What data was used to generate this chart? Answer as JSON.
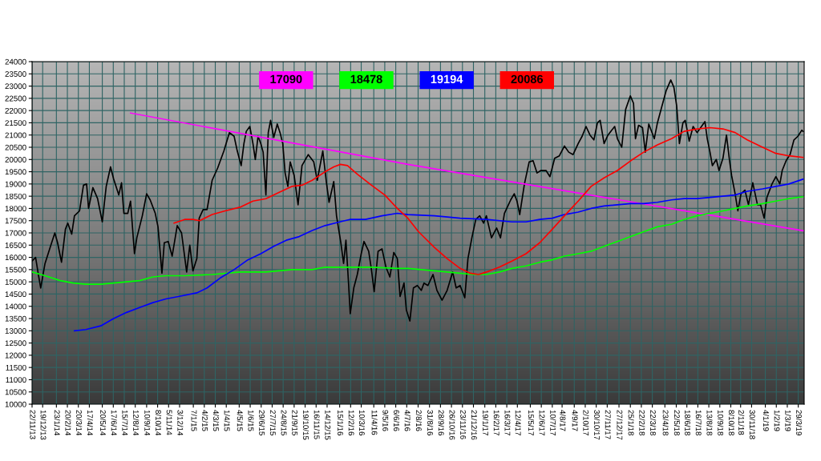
{
  "chart_data": {
    "type": "line",
    "series": [
      {
        "color": "#000000",
        "x": [
          "2013-11-22",
          "2013-12-01",
          "2013-12-08",
          "2013-12-14",
          "2013-12-25",
          "2014-01-07",
          "2014-01-19",
          "2014-01-26",
          "2014-02-05",
          "2014-02-15",
          "2014-02-21",
          "2014-03-03",
          "2014-03-10",
          "2014-03-23",
          "2014-04-02",
          "2014-04-10",
          "2014-04-15",
          "2014-04-26",
          "2014-05-08",
          "2014-05-20",
          "2014-05-30",
          "2014-06-10",
          "2014-06-18",
          "2014-07-01",
          "2014-07-08",
          "2014-07-14",
          "2014-07-24",
          "2014-07-31",
          "2014-08-10",
          "2014-08-16",
          "2014-08-30",
          "2014-09-10",
          "2014-09-19",
          "2014-10-02",
          "2014-10-09",
          "2014-10-19",
          "2014-10-25",
          "2014-11-04",
          "2014-11-14",
          "2014-11-27",
          "2014-12-08",
          "2014-12-21",
          "2014-12-29",
          "2015-01-06",
          "2015-01-16",
          "2015-01-22",
          "2015-02-01",
          "2015-02-11",
          "2015-02-24",
          "2015-03-10",
          "2015-03-26",
          "2015-04-09",
          "2015-04-21",
          "2015-04-29",
          "2015-05-09",
          "2015-05-16",
          "2015-05-22",
          "2015-05-31",
          "2015-06-08",
          "2015-06-14",
          "2015-06-21",
          "2015-06-28",
          "2015-07-04",
          "2015-07-11",
          "2015-07-17",
          "2015-07-23",
          "2015-07-31",
          "2015-08-09",
          "2015-08-16",
          "2015-08-23",
          "2015-08-29",
          "2015-09-05",
          "2015-09-11",
          "2015-09-21",
          "2015-10-01",
          "2015-10-11",
          "2015-10-27",
          "2015-11-10",
          "2015-11-19",
          "2015-12-03",
          "2015-12-12",
          "2015-12-19",
          "2015-12-31",
          "2016-01-07",
          "2016-01-18",
          "2016-01-25",
          "2016-01-31",
          "2016-02-07",
          "2016-02-11",
          "2016-02-20",
          "2016-02-29",
          "2016-03-10",
          "2016-03-17",
          "2016-03-29",
          "2016-04-05",
          "2016-04-12",
          "2016-04-22",
          "2016-05-02",
          "2016-05-12",
          "2016-05-22",
          "2016-06-01",
          "2016-06-10",
          "2016-06-17",
          "2016-06-27",
          "2016-07-03",
          "2016-07-12",
          "2016-07-21",
          "2016-07-31",
          "2016-08-10",
          "2016-08-17",
          "2016-08-27",
          "2016-09-09",
          "2016-09-19",
          "2016-10-02",
          "2016-10-15",
          "2016-10-29",
          "2016-11-07",
          "2016-11-17",
          "2016-11-29",
          "2016-12-07",
          "2016-12-17",
          "2016-12-27",
          "2017-01-06",
          "2017-01-16",
          "2017-01-23",
          "2017-02-05",
          "2017-02-18",
          "2017-02-28",
          "2017-03-10",
          "2017-03-26",
          "2017-04-04",
          "2017-04-11",
          "2017-04-18",
          "2017-04-30",
          "2017-05-12",
          "2017-05-22",
          "2017-06-01",
          "2017-06-11",
          "2017-06-24",
          "2017-07-04",
          "2017-07-16",
          "2017-07-28",
          "2017-08-10",
          "2017-08-21",
          "2017-09-01",
          "2017-09-14",
          "2017-09-24",
          "2017-10-04",
          "2017-10-14",
          "2017-10-24",
          "2017-11-02",
          "2017-11-09",
          "2017-11-19",
          "2017-11-29",
          "2017-12-16",
          "2017-12-23",
          "2018-01-03",
          "2018-01-13",
          "2018-01-25",
          "2018-02-02",
          "2018-02-07",
          "2018-02-15",
          "2018-02-25",
          "2018-03-04",
          "2018-03-13",
          "2018-03-27",
          "2018-04-04",
          "2018-04-15",
          "2018-04-26",
          "2018-05-08",
          "2018-05-16",
          "2018-05-23",
          "2018-05-30",
          "2018-06-08",
          "2018-06-14",
          "2018-06-24",
          "2018-07-04",
          "2018-07-14",
          "2018-08-03",
          "2018-08-09",
          "2018-08-16",
          "2018-08-22",
          "2018-09-01",
          "2018-09-08",
          "2018-09-18",
          "2018-09-27",
          "2018-10-04",
          "2018-10-10",
          "2018-10-19",
          "2018-10-26",
          "2018-11-03",
          "2018-11-13",
          "2018-11-22",
          "2018-12-03",
          "2018-12-15",
          "2018-12-23",
          "2019-01-01",
          "2019-01-08",
          "2019-01-21",
          "2019-01-31",
          "2019-02-10",
          "2019-02-16",
          "2019-02-26",
          "2019-03-08",
          "2019-03-18",
          "2019-03-28",
          "2019-04-07",
          "2019-04-10"
        ],
        "values": [
          15850,
          16000,
          15300,
          14750,
          15750,
          16400,
          17000,
          16600,
          15800,
          17150,
          17400,
          16950,
          17700,
          17900,
          18950,
          19000,
          18000,
          18850,
          18400,
          17450,
          18900,
          19700,
          19200,
          18550,
          19050,
          17800,
          17800,
          18300,
          16150,
          16800,
          17700,
          18600,
          18350,
          17800,
          17250,
          15350,
          16600,
          16650,
          16050,
          17300,
          17000,
          15400,
          16500,
          15450,
          15950,
          17600,
          17950,
          17950,
          19150,
          19650,
          20350,
          21100,
          20950,
          20350,
          19750,
          20650,
          21150,
          21350,
          20650,
          20000,
          20950,
          20650,
          20300,
          18550,
          21100,
          21600,
          20900,
          21450,
          21100,
          20650,
          19450,
          18900,
          19900,
          19350,
          18150,
          19750,
          20200,
          19900,
          19150,
          20350,
          19100,
          18250,
          19100,
          17700,
          16600,
          15750,
          16700,
          14850,
          13700,
          14750,
          15300,
          16150,
          16650,
          16250,
          15500,
          14600,
          16250,
          16350,
          15600,
          15200,
          16200,
          15950,
          14400,
          14950,
          13850,
          13400,
          14750,
          14850,
          14650,
          14950,
          14850,
          15300,
          14650,
          14250,
          14650,
          15400,
          14750,
          14850,
          14350,
          15950,
          16800,
          17550,
          17700,
          17400,
          17700,
          16800,
          17200,
          16800,
          17800,
          18350,
          18600,
          18300,
          17750,
          19000,
          19900,
          19950,
          19450,
          19550,
          19550,
          19300,
          20050,
          20150,
          20550,
          20300,
          20200,
          20650,
          20950,
          21350,
          21000,
          20800,
          21500,
          21600,
          20650,
          21000,
          21350,
          20850,
          20500,
          22050,
          22600,
          22300,
          20850,
          21400,
          21300,
          20300,
          21450,
          20850,
          21500,
          22150,
          22800,
          23250,
          22950,
          22200,
          20650,
          21500,
          21600,
          20750,
          21350,
          21100,
          21550,
          20850,
          20300,
          19750,
          20000,
          19550,
          20050,
          21000,
          20050,
          19350,
          18600,
          17900,
          18600,
          18750,
          18150,
          19050,
          18150,
          18150,
          17600,
          18450,
          19000,
          19300,
          19000,
          19550,
          19950,
          20200,
          20800,
          20950,
          21200,
          21150
        ]
      },
      {
        "name": "17090",
        "color": "#ff00ff",
        "x": [
          "2014-07-31",
          "2016-07-07",
          "2019-04-10"
        ],
        "values": [
          21900,
          19800,
          17090
        ]
      },
      {
        "name": "18478",
        "color": "#00ff00",
        "x": [
          "2013-11-22",
          "2013-12-25",
          "2014-02-02",
          "2014-03-07",
          "2014-04-08",
          "2014-05-16",
          "2014-06-18",
          "2014-07-21",
          "2014-08-23",
          "2014-09-26",
          "2014-10-29",
          "2014-12-16",
          "2015-02-24",
          "2015-05-06",
          "2015-07-11",
          "2015-09-15",
          "2015-11-06",
          "2015-12-09",
          "2016-01-28",
          "2016-04-05",
          "2016-06-10",
          "2016-07-07",
          "2016-09-13",
          "2016-11-17",
          "2016-12-20",
          "2017-01-23",
          "2017-02-25",
          "2017-03-29",
          "2017-05-04",
          "2017-06-08",
          "2017-07-10",
          "2017-08-10",
          "2017-09-14",
          "2017-10-17",
          "2017-11-19",
          "2017-12-23",
          "2018-01-26",
          "2018-02-28",
          "2018-04-04",
          "2018-05-10",
          "2018-06-11",
          "2018-07-14",
          "2018-08-16",
          "2018-09-18",
          "2018-10-19",
          "2018-11-19",
          "2018-12-28",
          "2019-01-31",
          "2019-03-05",
          "2019-04-10"
        ],
        "values": [
          15400,
          15250,
          15050,
          14950,
          14900,
          14900,
          14950,
          15000,
          15050,
          15200,
          15250,
          15250,
          15300,
          15400,
          15400,
          15500,
          15500,
          15600,
          15600,
          15600,
          15550,
          15550,
          15450,
          15350,
          15300,
          15300,
          15400,
          15550,
          15650,
          15800,
          15900,
          16050,
          16150,
          16250,
          16450,
          16650,
          16850,
          17050,
          17250,
          17350,
          17550,
          17700,
          17800,
          17900,
          18000,
          18100,
          18200,
          18300,
          18400,
          18478
        ]
      },
      {
        "name": "19194",
        "color": "#0000ff",
        "x": [
          "2014-03-10",
          "2014-04-08",
          "2014-05-16",
          "2014-06-18",
          "2014-07-21",
          "2014-08-23",
          "2014-09-26",
          "2014-10-29",
          "2014-11-30",
          "2015-01-16",
          "2015-02-11",
          "2015-03-16",
          "2015-04-21",
          "2015-05-26",
          "2015-06-28",
          "2015-07-31",
          "2015-09-01",
          "2015-10-04",
          "2015-11-06",
          "2015-12-09",
          "2016-01-15",
          "2016-02-10",
          "2016-03-21",
          "2016-05-02",
          "2016-06-10",
          "2016-07-07",
          "2016-09-13",
          "2016-11-17",
          "2017-01-23",
          "2017-03-29",
          "2017-05-04",
          "2017-06-08",
          "2017-07-10",
          "2017-08-10",
          "2017-09-14",
          "2017-10-17",
          "2017-11-19",
          "2017-12-23",
          "2018-01-26",
          "2018-02-28",
          "2018-04-04",
          "2018-05-10",
          "2018-06-11",
          "2018-07-14",
          "2018-08-16",
          "2018-09-18",
          "2018-10-19",
          "2018-11-19",
          "2018-12-28",
          "2019-01-31",
          "2019-03-05",
          "2019-04-10"
        ],
        "values": [
          13000,
          13050,
          13200,
          13500,
          13750,
          13950,
          14150,
          14300,
          14400,
          14550,
          14750,
          15150,
          15500,
          15900,
          16150,
          16450,
          16700,
          16850,
          17100,
          17300,
          17450,
          17550,
          17550,
          17700,
          17800,
          17750,
          17700,
          17600,
          17550,
          17450,
          17450,
          17550,
          17600,
          17750,
          17850,
          18000,
          18100,
          18150,
          18200,
          18200,
          18250,
          18350,
          18400,
          18400,
          18450,
          18500,
          18550,
          18700,
          18800,
          18900,
          19000,
          19194
        ]
      },
      {
        "name": "20086",
        "color": "#ff0000",
        "x": [
          "2014-11-19",
          "2014-12-16",
          "2015-01-06",
          "2015-01-23",
          "2015-02-24",
          "2015-03-29",
          "2015-05-06",
          "2015-06-08",
          "2015-07-11",
          "2015-08-13",
          "2015-09-15",
          "2015-10-11",
          "2015-11-06",
          "2015-12-09",
          "2015-12-31",
          "2016-01-17",
          "2016-02-04",
          "2016-02-29",
          "2016-04-05",
          "2016-05-09",
          "2016-06-10",
          "2016-07-07",
          "2016-08-03",
          "2016-09-13",
          "2016-10-15",
          "2016-11-17",
          "2016-12-13",
          "2017-01-03",
          "2017-01-23",
          "2017-02-25",
          "2017-03-29",
          "2017-05-04",
          "2017-06-08",
          "2017-07-10",
          "2017-08-10",
          "2017-09-14",
          "2017-10-17",
          "2017-11-19",
          "2017-12-23",
          "2018-01-26",
          "2018-02-28",
          "2018-04-04",
          "2018-05-10",
          "2018-06-11",
          "2018-07-14",
          "2018-08-16",
          "2018-09-18",
          "2018-10-19",
          "2018-11-19",
          "2018-12-28",
          "2019-01-31",
          "2019-03-05",
          "2019-04-10"
        ],
        "values": [
          17400,
          17550,
          17550,
          17500,
          17750,
          17900,
          18050,
          18300,
          18400,
          18650,
          18900,
          18950,
          19150,
          19500,
          19700,
          19800,
          19750,
          19400,
          18950,
          18550,
          18000,
          17600,
          17050,
          16400,
          15950,
          15550,
          15350,
          15300,
          15400,
          15600,
          15850,
          16150,
          16600,
          17150,
          17700,
          18300,
          18900,
          19250,
          19550,
          19950,
          20300,
          20600,
          20850,
          21150,
          21250,
          21300,
          21250,
          21100,
          20800,
          20500,
          20250,
          20150,
          20086
        ]
      }
    ],
    "xlim": [
      "2013-11-22",
      "2019-04-13"
    ],
    "xticks": [
      {
        "value": "2013-11-22",
        "label": "22/11/13"
      },
      {
        "value": "2013-12-19",
        "label": "19/12/13"
      },
      {
        "value": "2014-01-23",
        "label": "23/1/14"
      },
      {
        "value": "2014-02-20",
        "label": "20/2/14"
      },
      {
        "value": "2014-03-20",
        "label": "20/3/14"
      },
      {
        "value": "2014-04-17",
        "label": "17/4/14"
      },
      {
        "value": "2014-05-20",
        "label": "20/5/14"
      },
      {
        "value": "2014-06-17",
        "label": "17/6/14"
      },
      {
        "value": "2014-07-15",
        "label": "15/7/14"
      },
      {
        "value": "2014-08-12",
        "label": "12/8/14"
      },
      {
        "value": "2014-09-10",
        "label": "10/9/14"
      },
      {
        "value": "2014-10-08",
        "label": "8/10/14"
      },
      {
        "value": "2014-11-05",
        "label": "5/11/14"
      },
      {
        "value": "2014-12-03",
        "label": "3/12/14"
      },
      {
        "value": "2015-01-07",
        "label": "7/1/15"
      },
      {
        "value": "2015-02-04",
        "label": "4/2/15"
      },
      {
        "value": "2015-03-04",
        "label": "4/3/15"
      },
      {
        "value": "2015-04-01",
        "label": "1/4/15"
      },
      {
        "value": "2015-05-04",
        "label": "4/5/15"
      },
      {
        "value": "2015-06-01",
        "label": "1/6/15"
      },
      {
        "value": "2015-06-29",
        "label": "29/6/15"
      },
      {
        "value": "2015-07-27",
        "label": "27/7/15"
      },
      {
        "value": "2015-08-24",
        "label": "24/8/15"
      },
      {
        "value": "2015-09-21",
        "label": "21/9/15"
      },
      {
        "value": "2015-10-19",
        "label": "19/10/15"
      },
      {
        "value": "2015-11-16",
        "label": "16/11/15"
      },
      {
        "value": "2015-12-14",
        "label": "14/12/15"
      },
      {
        "value": "2016-01-15",
        "label": "15/1/16"
      },
      {
        "value": "2016-02-12",
        "label": "12/2/16"
      },
      {
        "value": "2016-03-10",
        "label": "10/3/16"
      },
      {
        "value": "2016-04-11",
        "label": "11/4/16"
      },
      {
        "value": "2016-05-09",
        "label": "9/5/16"
      },
      {
        "value": "2016-06-06",
        "label": "6/6/16"
      },
      {
        "value": "2016-07-04",
        "label": "4/7/16"
      },
      {
        "value": "2016-08-02",
        "label": "2/8/16"
      },
      {
        "value": "2016-08-31",
        "label": "31/8/16"
      },
      {
        "value": "2016-09-28",
        "label": "28/9/16"
      },
      {
        "value": "2016-10-26",
        "label": "26/10/16"
      },
      {
        "value": "2016-11-23",
        "label": "23/11/16"
      },
      {
        "value": "2016-12-21",
        "label": "21/12/16"
      },
      {
        "value": "2017-01-19",
        "label": "19/1/17"
      },
      {
        "value": "2017-02-16",
        "label": "16/2/17"
      },
      {
        "value": "2017-03-16",
        "label": "16/3/17"
      },
      {
        "value": "2017-04-12",
        "label": "12/4/17"
      },
      {
        "value": "2017-05-15",
        "label": "15/5/17"
      },
      {
        "value": "2017-06-12",
        "label": "12/6/17"
      },
      {
        "value": "2017-07-10",
        "label": "10/7/17"
      },
      {
        "value": "2017-08-04",
        "label": "4/8/17"
      },
      {
        "value": "2017-09-04",
        "label": "4/9/17"
      },
      {
        "value": "2017-10-02",
        "label": "2/10/17"
      },
      {
        "value": "2017-10-30",
        "label": "30/10/17"
      },
      {
        "value": "2017-11-27",
        "label": "27/11/17"
      },
      {
        "value": "2017-12-27",
        "label": "27/12/17"
      },
      {
        "value": "2018-01-25",
        "label": "25/1/18"
      },
      {
        "value": "2018-02-22",
        "label": "22/2/18"
      },
      {
        "value": "2018-03-22",
        "label": "22/3/18"
      },
      {
        "value": "2018-04-23",
        "label": "23/4/18"
      },
      {
        "value": "2018-05-22",
        "label": "22/5/18"
      },
      {
        "value": "2018-06-18",
        "label": "18/6/18"
      },
      {
        "value": "2018-07-16",
        "label": "16/7/18"
      },
      {
        "value": "2018-08-13",
        "label": "13/8/18"
      },
      {
        "value": "2018-09-10",
        "label": "10/9/18"
      },
      {
        "value": "2018-10-08",
        "label": "8/10/18"
      },
      {
        "value": "2018-11-02",
        "label": "2/11/18"
      },
      {
        "value": "2018-11-30",
        "label": "30/11/18"
      },
      {
        "value": "2019-01-04",
        "label": "4/1/19"
      },
      {
        "value": "2019-02-01",
        "label": "1/2/19"
      },
      {
        "value": "2019-03-01",
        "label": "1/3/19"
      },
      {
        "value": "2019-03-29",
        "label": "29/3/19"
      }
    ],
    "ylim": [
      10000,
      24000
    ],
    "yticks": [
      10000,
      10500,
      11000,
      11500,
      12000,
      12500,
      13000,
      13500,
      14000,
      14500,
      15000,
      15500,
      16000,
      16500,
      17000,
      17500,
      18000,
      18500,
      19000,
      19500,
      20000,
      20500,
      21000,
      21500,
      22000,
      22500,
      23000,
      23500,
      24000
    ],
    "grid": true,
    "legend": "top"
  }
}
